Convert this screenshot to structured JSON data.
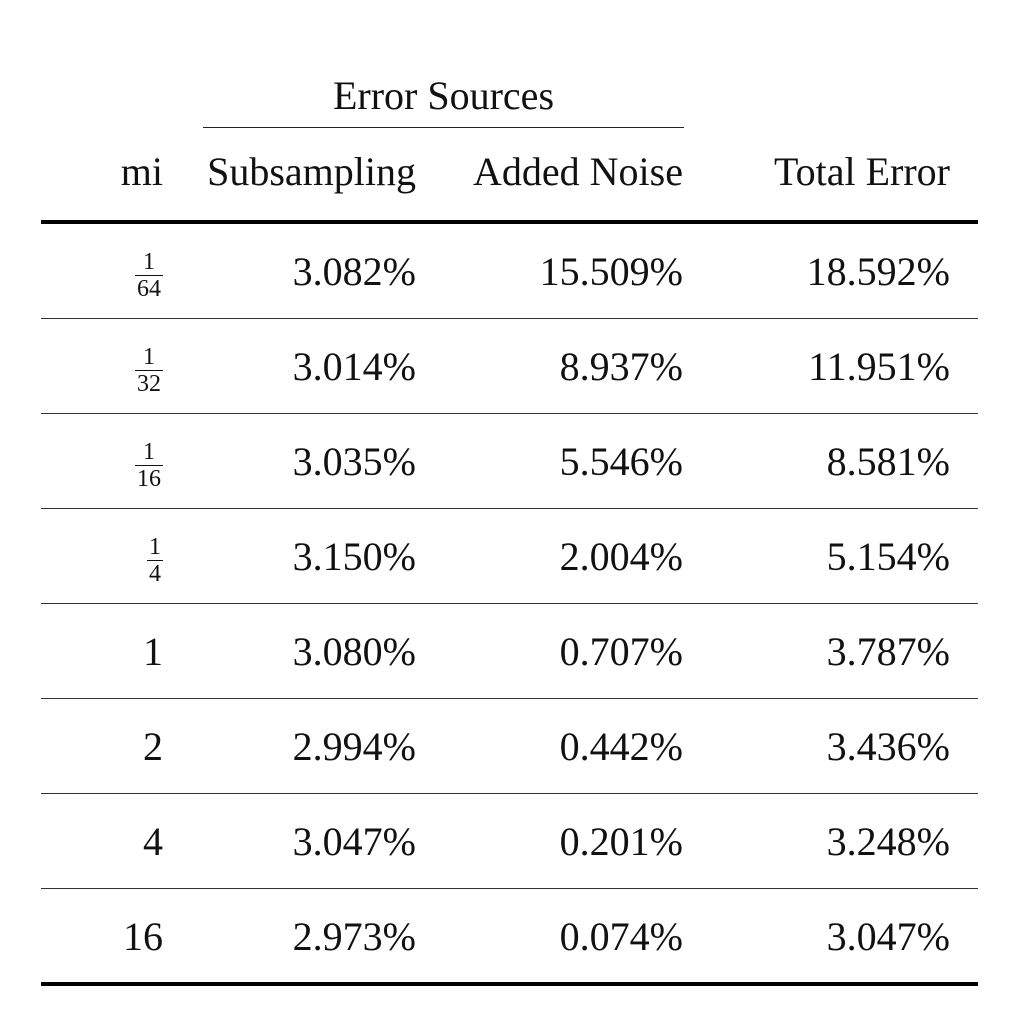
{
  "table": {
    "group_header": "Error Sources",
    "headers": {
      "mi": "mi",
      "subsampling": "Subsampling",
      "added_noise": "Added Noise",
      "total_error": "Total Error"
    },
    "rows": [
      {
        "mi": {
          "num": "1",
          "den": "64"
        },
        "subsampling": "3.082%",
        "added_noise": "15.509%",
        "total_error": "18.592%"
      },
      {
        "mi": {
          "num": "1",
          "den": "32"
        },
        "subsampling": "3.014%",
        "added_noise": "8.937%",
        "total_error": "11.951%"
      },
      {
        "mi": {
          "num": "1",
          "den": "16"
        },
        "subsampling": "3.035%",
        "added_noise": "5.546%",
        "total_error": "8.581%"
      },
      {
        "mi": {
          "num": "1",
          "den": "4"
        },
        "subsampling": "3.150%",
        "added_noise": "2.004%",
        "total_error": "5.154%"
      },
      {
        "mi": "1",
        "subsampling": "3.080%",
        "added_noise": "0.707%",
        "total_error": "3.787%"
      },
      {
        "mi": "2",
        "subsampling": "2.994%",
        "added_noise": "0.442%",
        "total_error": "3.436%"
      },
      {
        "mi": "4",
        "subsampling": "3.047%",
        "added_noise": "0.201%",
        "total_error": "3.248%"
      },
      {
        "mi": "16",
        "subsampling": "2.973%",
        "added_noise": "0.074%",
        "total_error": "3.047%"
      }
    ]
  }
}
